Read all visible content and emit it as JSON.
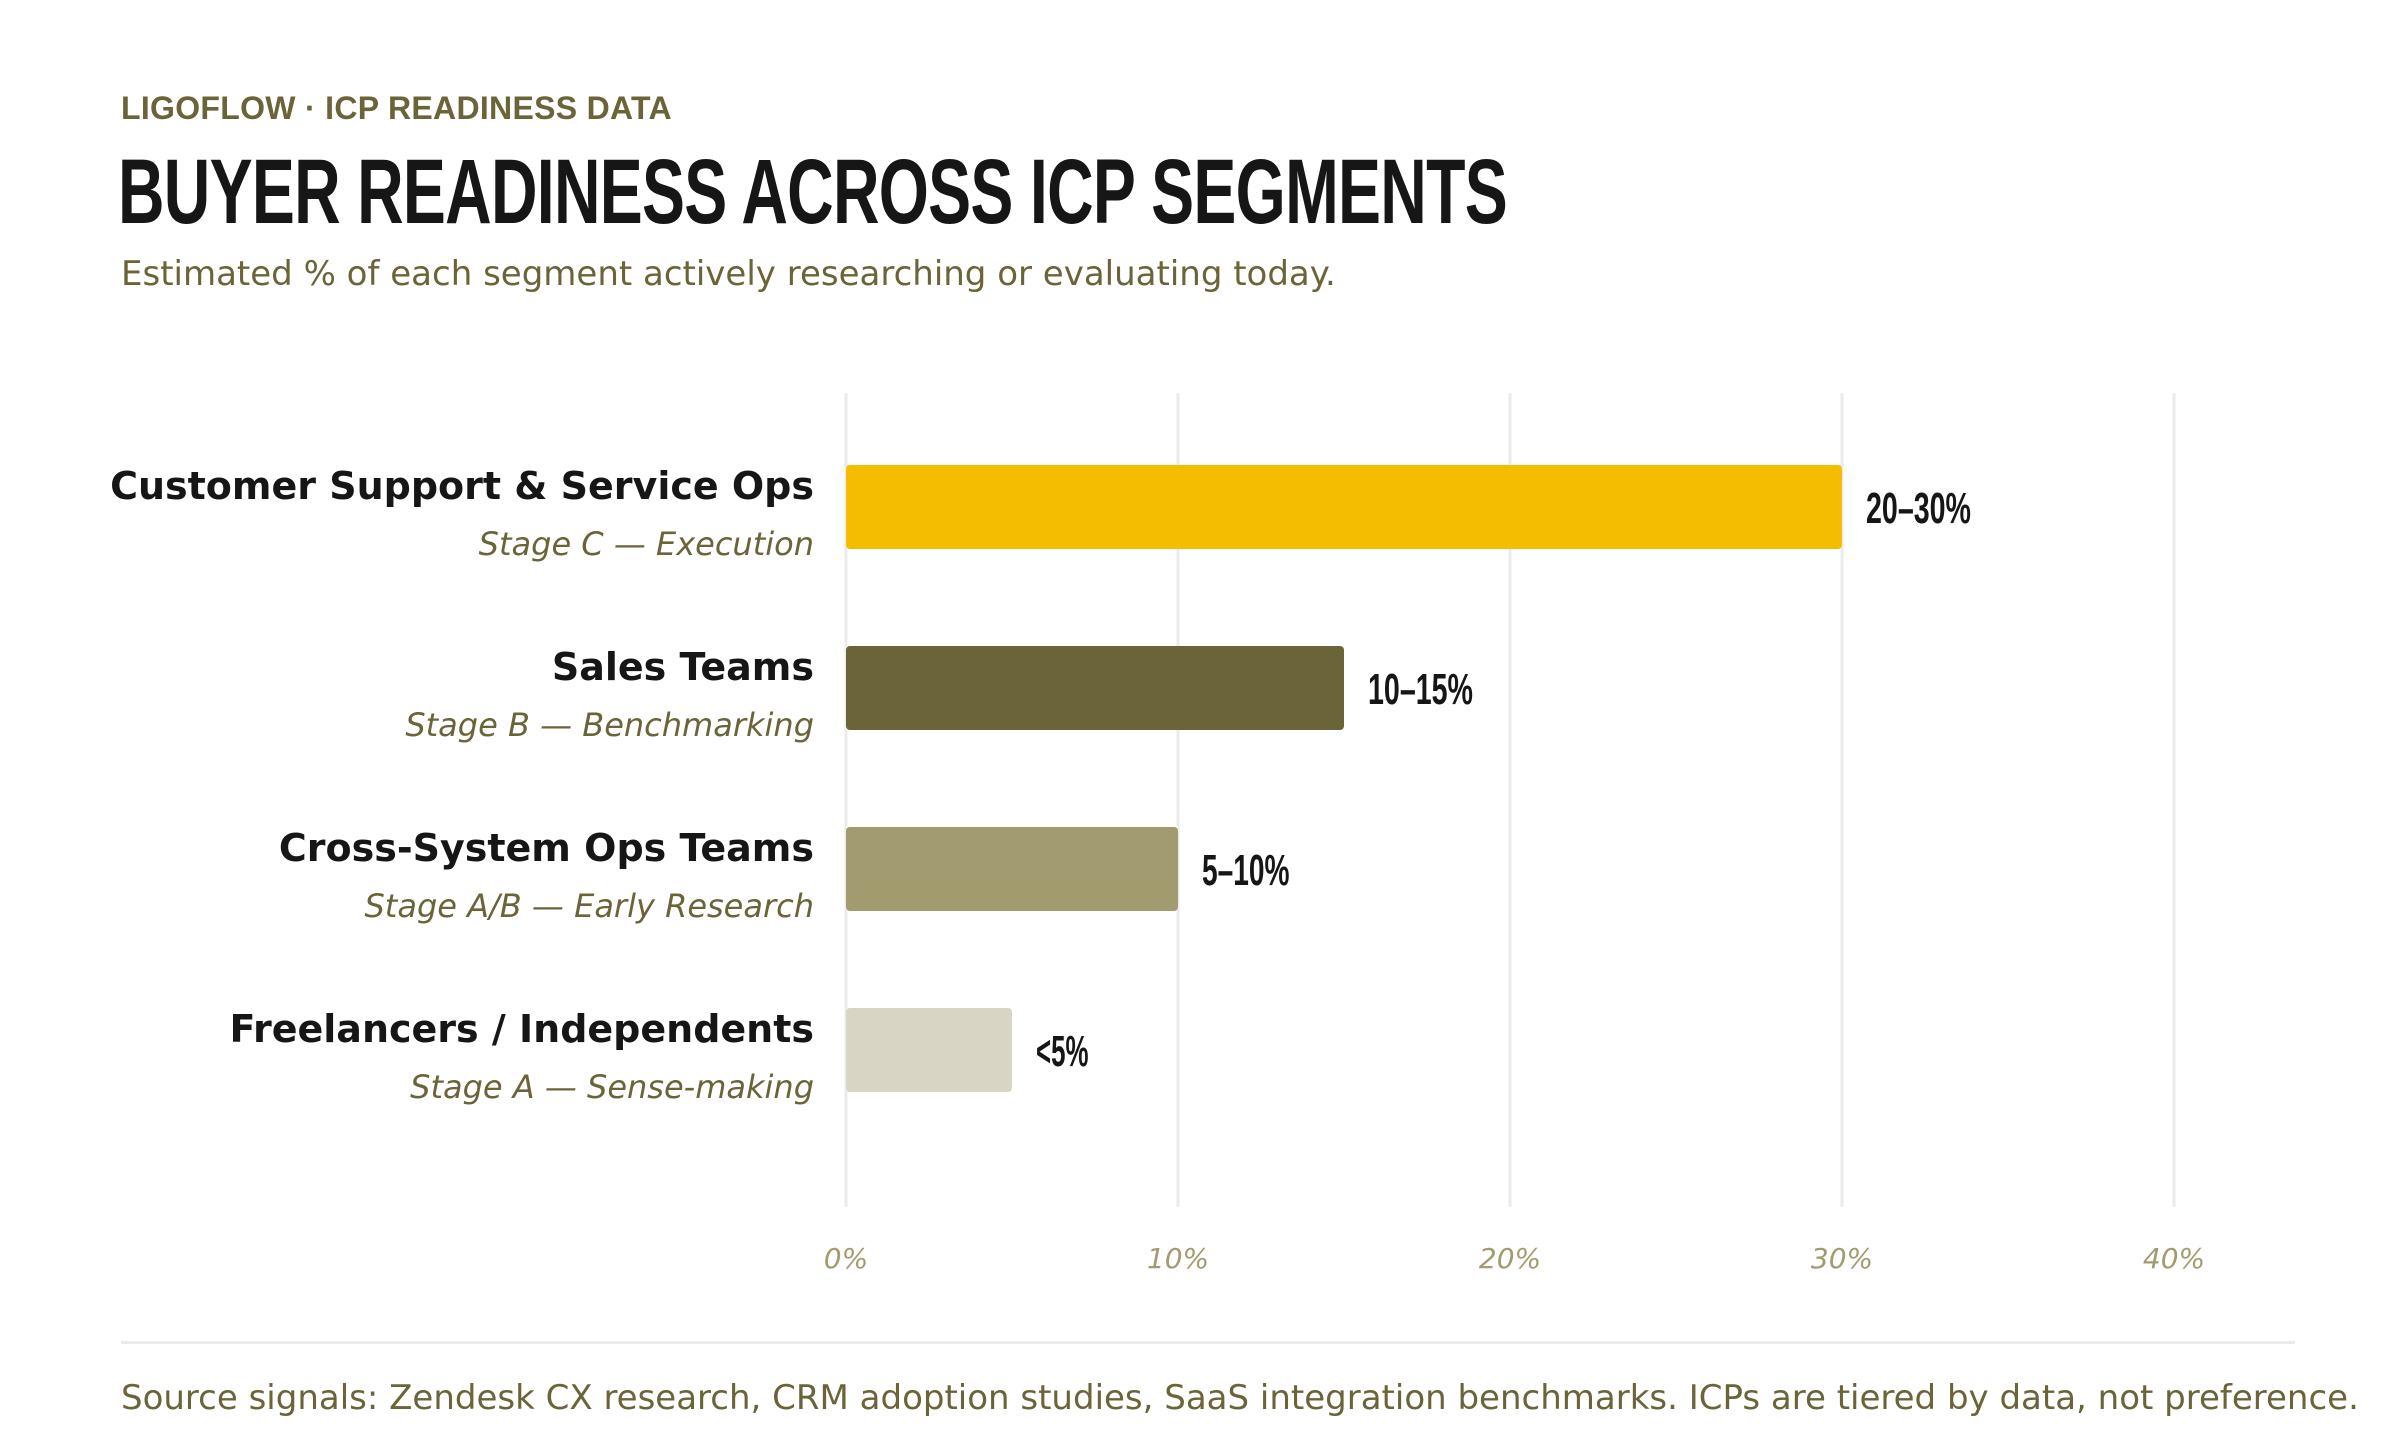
{
  "header": {
    "eyebrow": "LIGOFLOW · ICP READINESS DATA",
    "title": "BUYER READINESS ACROSS ICP SEGMENTS",
    "subtitle": "Estimated % of each segment actively researching or evaluating today."
  },
  "footer": {
    "source": "Source signals: Zendesk CX research, CRM adoption studies, SaaS integration benchmarks. ICPs are tiered by data, not preference."
  },
  "colors": {
    "accent": "#f5bd02",
    "olive_dark": "#6b6439",
    "olive_mid": "#a39b70",
    "olive_light": "#d9d5c4",
    "grid": "#ebebeb",
    "tick": "#a39b70",
    "text": "#161616"
  },
  "chart_data": {
    "type": "bar",
    "orientation": "horizontal",
    "title": "BUYER READINESS ACROSS ICP SEGMENTS",
    "xlabel": "",
    "ylabel": "",
    "xlim": [
      0,
      40
    ],
    "xticks": [
      0,
      10,
      20,
      30,
      40
    ],
    "xtick_labels": [
      "0%",
      "10%",
      "20%",
      "30%",
      "40%"
    ],
    "grid": true,
    "categories": [
      "Customer Support & Service Ops",
      "Sales Teams",
      "Cross-System Ops Teams",
      "Freelancers / Independents"
    ],
    "stages": [
      "Stage C — Execution",
      "Stage B — Benchmarking",
      "Stage A/B — Early Research",
      "Stage A — Sense-making"
    ],
    "values": [
      30,
      15,
      10,
      5
    ],
    "value_labels": [
      "20–30%",
      "10–15%",
      "5–10%",
      "<5%"
    ],
    "bar_colors": [
      "#f5bd02",
      "#6b6439",
      "#a39b70",
      "#d9d5c4"
    ]
  }
}
